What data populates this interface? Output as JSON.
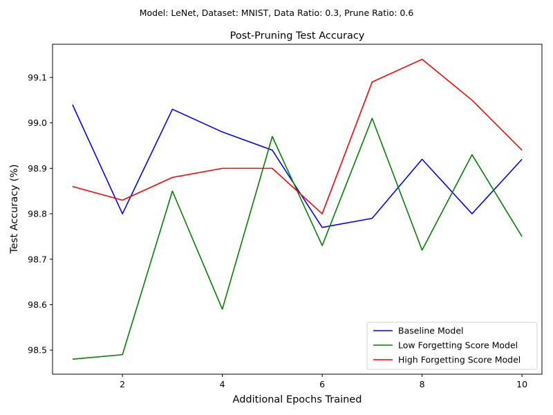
{
  "chart_data": {
    "type": "line",
    "suptitle": "Model: LeNet, Dataset: MNIST, Data Ratio: 0.3, Prune Ratio: 0.6",
    "title": "Post-Pruning Test Accuracy",
    "xlabel": "Additional Epochs Trained",
    "ylabel": "Test Accuracy (%)",
    "x": [
      1,
      2,
      3,
      4,
      5,
      6,
      7,
      8,
      9,
      10
    ],
    "xlim": [
      0.6,
      10.4
    ],
    "ylim": [
      98.447,
      99.173
    ],
    "xticks": [
      2,
      4,
      6,
      8,
      10
    ],
    "yticks": [
      98.5,
      98.6,
      98.7,
      98.8,
      98.9,
      99.0,
      99.1
    ],
    "xtick_labels": [
      "2",
      "4",
      "6",
      "8",
      "10"
    ],
    "ytick_labels": [
      "98.5",
      "98.6",
      "98.7",
      "98.8",
      "98.9",
      "99.0",
      "99.1"
    ],
    "grid": false,
    "legend_position": "lower-right",
    "series": [
      {
        "name": "Baseline Model",
        "color": "#0000ff",
        "values": [
          99.04,
          98.8,
          99.03,
          98.98,
          98.94,
          98.77,
          98.79,
          98.92,
          98.8,
          98.92
        ]
      },
      {
        "name": "Low Forgetting Score Model",
        "color": "#008000",
        "values": [
          98.48,
          98.49,
          98.85,
          98.59,
          98.97,
          98.73,
          99.01,
          98.72,
          98.93,
          98.75
        ]
      },
      {
        "name": "High Forgetting Score Model",
        "color": "#ff0000",
        "values": [
          98.86,
          98.83,
          98.88,
          98.9,
          98.9,
          98.8,
          99.09,
          99.14,
          99.05,
          98.94
        ]
      }
    ]
  }
}
